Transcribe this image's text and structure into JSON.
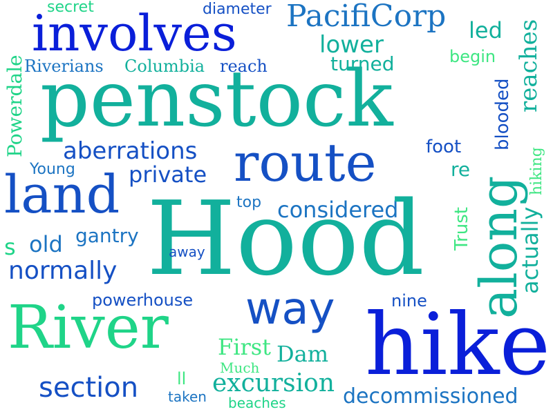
{
  "colors": {
    "blue": "#0a1fd9",
    "royal": "#1550c4",
    "steel": "#1c74c2",
    "teal": "#12b09c",
    "mint": "#1fd488",
    "green": "#3ee682"
  },
  "words": {
    "secret": "secret",
    "diameter": "diameter",
    "pacificorp": "PacifiCorp",
    "involves": "involves",
    "led": "led",
    "powerdale": "Powerdale",
    "lower": "lower",
    "reaches": "reaches",
    "begin": "begin",
    "riverians": "Riverians",
    "columbia": "Columbia",
    "reach": "reach",
    "turned": "turned",
    "penstock": "penstock",
    "blooded": "blooded",
    "aberrations": "aberrations",
    "foot": "foot",
    "route": "route",
    "young": "Young",
    "private": "private",
    "re": "re",
    "hiking": "hiking",
    "along": "along",
    "land": "land",
    "top": "top",
    "considered": "considered",
    "trust": "Trust",
    "actually": "actually",
    "hood": "Hood",
    "s": "s",
    "old": "old",
    "gantry": "gantry",
    "away": "away",
    "normally": "normally",
    "powerhouse": "powerhouse",
    "way": "way",
    "nine": "nine",
    "river": "River",
    "first": "First",
    "dam": "Dam",
    "much": "Much",
    "hike": "hike",
    "section": "section",
    "ll": "ll",
    "excursion": "excursion",
    "taken": "taken",
    "beaches": "beaches",
    "decommissioned": "decommissioned"
  }
}
